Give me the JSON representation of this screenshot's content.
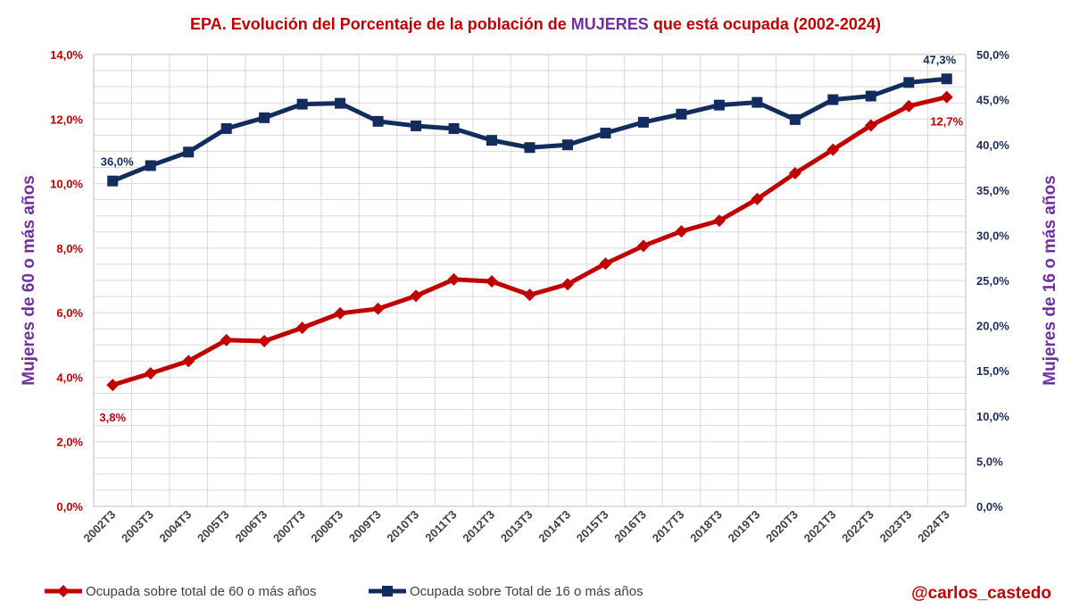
{
  "colors": {
    "title": "#c00000",
    "title_highlight": "#7030a0",
    "left_ticks": "#c00000",
    "right_ticks": "#1f2d5c",
    "axis_title": "#7030a0",
    "series_60": "#c00000",
    "series_16": "#132c5e",
    "grid": "#d9d9d9",
    "credit": "#c00000"
  },
  "chart_data": {
    "type": "line",
    "title": {
      "before": "EPA. Evolución del Porcentaje de la población de ",
      "highlight": "MUJERES",
      "after": " que está ocupada (2002-2024)"
    },
    "categories": [
      "2002T3",
      "2003T3",
      "2004T3",
      "2005T3",
      "2006T3",
      "2007T3",
      "2008T3",
      "2009T3",
      "2010T3",
      "2011T3",
      "2012T3",
      "2013T3",
      "2014T3",
      "2015T3",
      "2016T3",
      "2017T3",
      "2018T3",
      "2019T3",
      "2020T3",
      "2021T3",
      "2022T3",
      "2023T3",
      "2024T3"
    ],
    "y_left": {
      "label": "Mujeres de 60 o más años",
      "range": [
        0,
        14
      ],
      "ticks": [
        "0,0%",
        "2,0%",
        "4,0%",
        "6,0%",
        "8,0%",
        "10,0%",
        "12,0%",
        "14,0%"
      ]
    },
    "y_right": {
      "label": "Mujeres de 16 o más años",
      "range": [
        0,
        50
      ],
      "ticks": [
        "0,0%",
        "5,0%",
        "10,0%",
        "15,0%",
        "20,0%",
        "25,0%",
        "30,0%",
        "35,0%",
        "40,0%",
        "45,0%",
        "50,0%"
      ]
    },
    "grid": true,
    "series": [
      {
        "name": "Ocupada sobre total de 60 o más años",
        "axis": "left",
        "marker": "diamond",
        "values": [
          3.76,
          4.12,
          4.5,
          5.15,
          5.12,
          5.53,
          5.98,
          6.12,
          6.52,
          7.03,
          6.97,
          6.55,
          6.88,
          7.52,
          8.07,
          8.52,
          8.85,
          9.52,
          10.32,
          11.05,
          11.8,
          12.4,
          12.68
        ],
        "first_label": "3,8%",
        "last_label": "12,7%"
      },
      {
        "name": "Ocupada sobre Total de 16 o más años",
        "axis": "right",
        "marker": "square",
        "values": [
          36.0,
          37.7,
          39.2,
          41.8,
          43.0,
          44.5,
          44.6,
          42.6,
          42.1,
          41.8,
          40.5,
          39.7,
          40.0,
          41.3,
          42.5,
          43.4,
          44.4,
          44.7,
          42.8,
          45.0,
          45.4,
          46.9,
          47.3
        ],
        "first_label": "36,0%",
        "last_label": "47,3%"
      }
    ],
    "legend": "bottom",
    "credit": "@carlos_castedo"
  }
}
